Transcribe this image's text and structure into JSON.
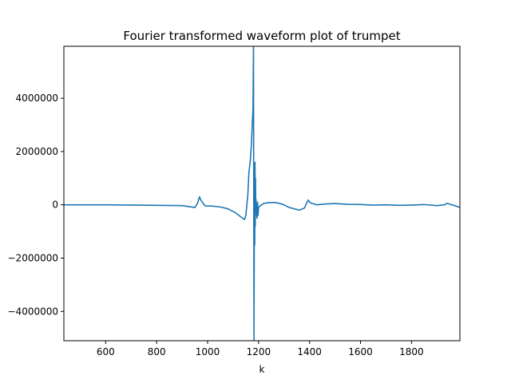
{
  "chart_data": {
    "type": "line",
    "title": "Fourier transformed waveform plot of trumpet",
    "xlabel": "k",
    "ylabel": "",
    "xlim": [
      436,
      1990
    ],
    "ylim": [
      -5100000,
      5950000
    ],
    "xticks": [
      600,
      800,
      1000,
      1200,
      1400,
      1600,
      1800
    ],
    "yticks": [
      -4000000,
      -2000000,
      0,
      2000000,
      4000000
    ],
    "grid": false,
    "color": "#1f77b4",
    "series": [
      {
        "x": [
          436,
          600,
          800,
          900,
          950,
          960,
          968,
          975,
          990,
          1020,
          1050,
          1080,
          1110,
          1130,
          1145,
          1150,
          1158,
          1162,
          1168,
          1172,
          1176,
          1178,
          1180,
          1182,
          1183,
          1184,
          1185,
          1186,
          1187,
          1188,
          1189,
          1190,
          1192,
          1194,
          1196,
          1198,
          1200,
          1205,
          1210,
          1215,
          1220,
          1230,
          1240,
          1260,
          1280,
          1300,
          1320,
          1340,
          1360,
          1380,
          1390,
          1395,
          1400,
          1410,
          1430,
          1460,
          1500,
          1550,
          1600,
          1650,
          1700,
          1750,
          1800,
          1850,
          1900,
          1930,
          1940,
          1950,
          1970,
          1990
        ],
        "y": [
          0,
          0,
          -20000,
          -30000,
          -100000,
          50000,
          300000,
          150000,
          -40000,
          -50000,
          -80000,
          -150000,
          -300000,
          -450000,
          -550000,
          -400000,
          400000,
          1200000,
          1700000,
          2300000,
          3200000,
          3600000,
          5950000,
          -5100000,
          -2000000,
          1000000,
          -1500000,
          1600000,
          -800000,
          1000000,
          -200000,
          200000,
          -300000,
          -500000,
          100000,
          -400000,
          -100000,
          -50000,
          -20000,
          20000,
          50000,
          70000,
          80000,
          90000,
          60000,
          0,
          -100000,
          -150000,
          -200000,
          -120000,
          100000,
          180000,
          100000,
          50000,
          0,
          30000,
          50000,
          20000,
          10000,
          -10000,
          0,
          -20000,
          -10000,
          10000,
          -30000,
          0,
          60000,
          20000,
          -30000,
          -100000
        ]
      }
    ]
  }
}
